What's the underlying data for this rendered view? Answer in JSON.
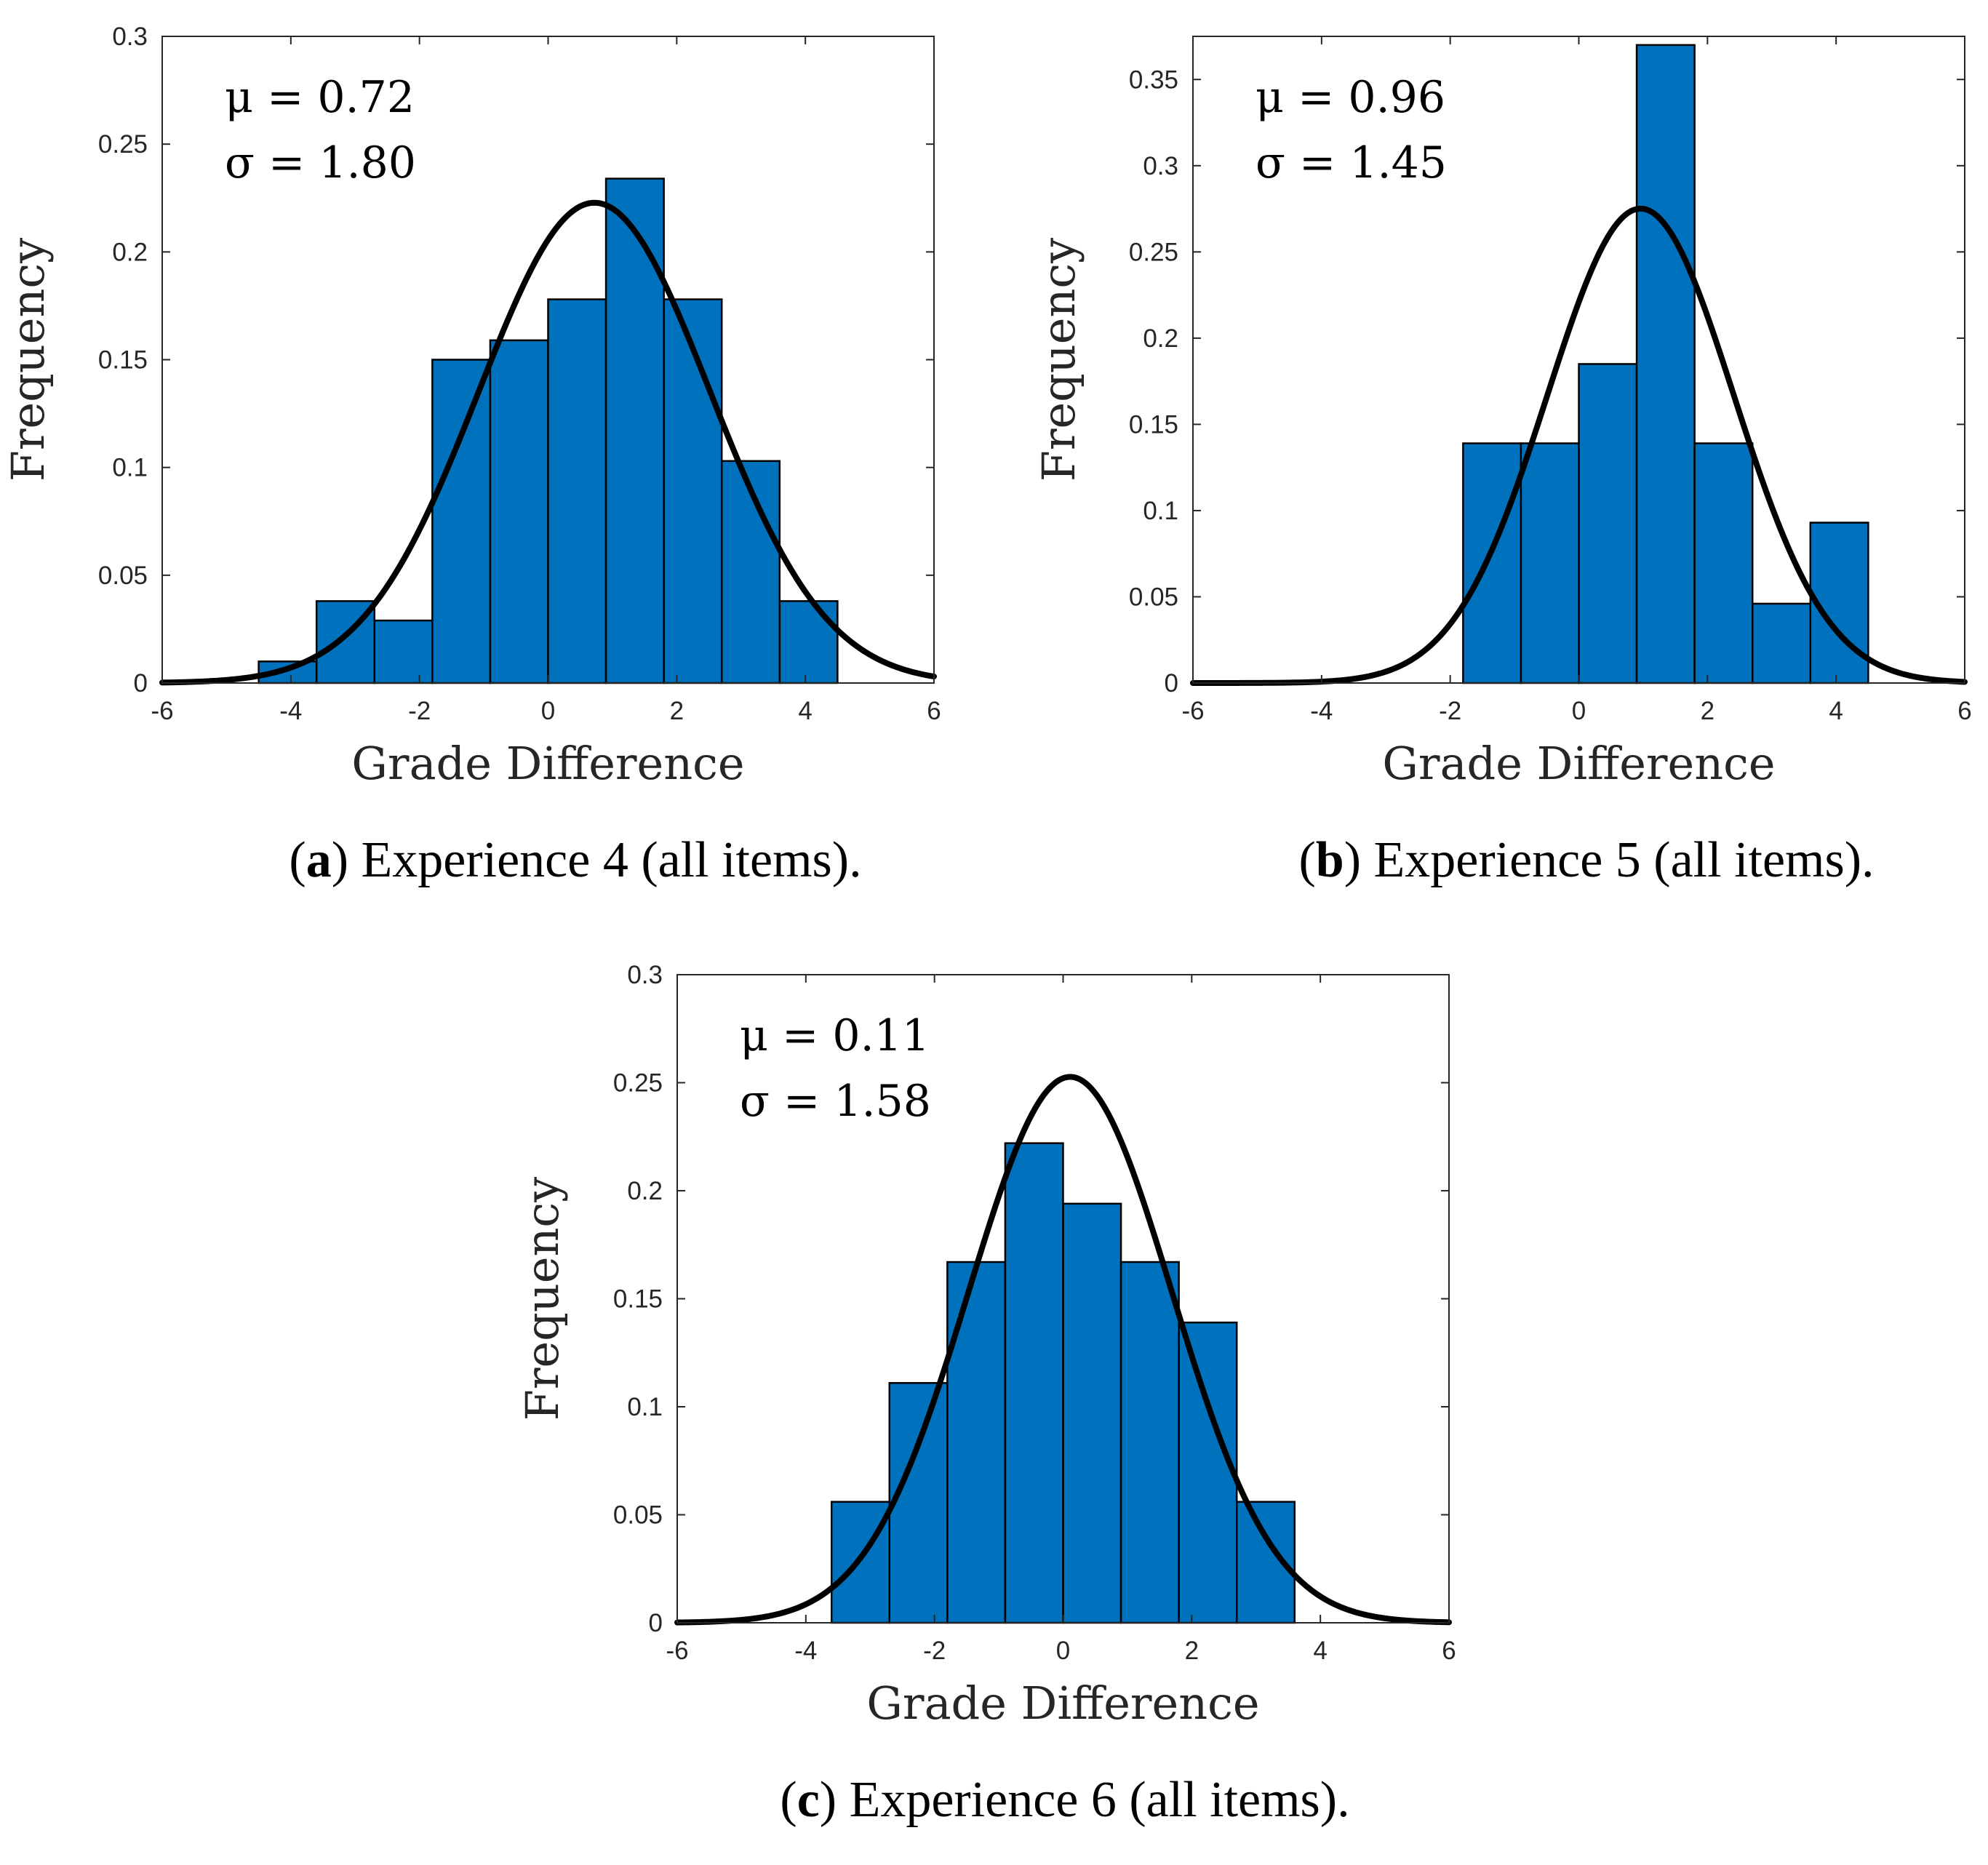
{
  "colors": {
    "bar_fill": "#0072BD",
    "bar_edge": "#000000",
    "curve": "#000000",
    "axis": "#262626"
  },
  "chart_data": [
    {
      "type": "bar",
      "subtype": "histogram with normal fit curve",
      "xlabel": "Grade Difference",
      "ylabel": "Frequency",
      "xlim": [
        -6,
        6
      ],
      "ylim": [
        0,
        0.3
      ],
      "xticks": [
        "-6",
        "-4",
        "-2",
        "0",
        "2",
        "4",
        "6"
      ],
      "yticks": [
        "0",
        "0.05",
        "0.1",
        "0.15",
        "0.2",
        "0.25",
        "0.3"
      ],
      "bin_edges": [
        -4.5,
        -3.6,
        -2.7,
        -1.8,
        -0.9,
        0,
        0.9,
        1.8,
        2.7,
        3.6,
        4.5
      ],
      "values": [
        0.01,
        0.038,
        0.029,
        0.15,
        0.159,
        0.178,
        0.234,
        0.178,
        0.103,
        0.038
      ],
      "fit": {
        "mu": 0.72,
        "sigma": 1.8
      },
      "annotation": {
        "mu_text": "μ = 0.72",
        "sigma_text": "σ = 1.80"
      },
      "caption_letter": "a",
      "caption_text": "Experience 4 (all items)."
    },
    {
      "type": "bar",
      "subtype": "histogram with normal fit curve",
      "xlabel": "Grade Difference",
      "ylabel": "Frequency",
      "xlim": [
        -6,
        6
      ],
      "ylim": [
        0,
        0.375
      ],
      "xticks": [
        "-6",
        "-4",
        "-2",
        "0",
        "2",
        "4",
        "6"
      ],
      "yticks": [
        "0",
        "0.05",
        "0.1",
        "0.15",
        "0.2",
        "0.25",
        "0.3",
        "0.35"
      ],
      "bin_edges": [
        -1.8,
        -0.9,
        0,
        0.9,
        1.8,
        2.7,
        3.6,
        4.5
      ],
      "values": [
        0.139,
        0.139,
        0.185,
        0.37,
        0.139,
        0.046,
        0.093
      ],
      "fit": {
        "mu": 0.96,
        "sigma": 1.45
      },
      "annotation": {
        "mu_text": "μ = 0.96",
        "sigma_text": "σ = 1.45"
      },
      "caption_letter": "b",
      "caption_text": "Experience 5 (all items)."
    },
    {
      "type": "bar",
      "subtype": "histogram with normal fit curve",
      "xlabel": "Grade Difference",
      "ylabel": "Frequency",
      "xlim": [
        -6,
        6
      ],
      "ylim": [
        0,
        0.3
      ],
      "xticks": [
        "-6",
        "-4",
        "-2",
        "0",
        "2",
        "4",
        "6"
      ],
      "yticks": [
        "0",
        "0.05",
        "0.1",
        "0.15",
        "0.2",
        "0.25",
        "0.3"
      ],
      "bin_edges": [
        -3.6,
        -2.7,
        -1.8,
        -0.9,
        0,
        0.9,
        1.8,
        2.7,
        3.6
      ],
      "values": [
        0.056,
        0.111,
        0.167,
        0.222,
        0.194,
        0.167,
        0.139,
        0.056
      ],
      "fit": {
        "mu": 0.11,
        "sigma": 1.58
      },
      "annotation": {
        "mu_text": "μ = 0.11",
        "sigma_text": "σ = 1.58"
      },
      "caption_letter": "c",
      "caption_text": "Experience 6 (all items)."
    }
  ]
}
